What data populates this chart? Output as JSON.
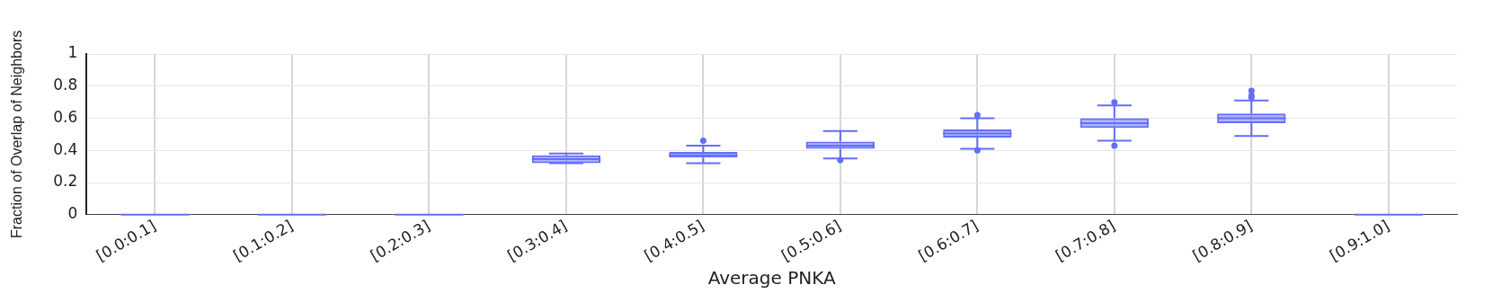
{
  "chart_data": {
    "type": "box",
    "xlabel": "Average PNKA",
    "ylabel": "Fraction of Overlap of Neighbors",
    "categories": [
      "[0.0:0.1]",
      "[0.1:0.2]",
      "[0.2:0.3]",
      "[0.3:0.4]",
      "[0.4:0.5]",
      "[0.5:0.6]",
      "[0.6:0.7]",
      "[0.7:0.8]",
      "[0.8:0.9]",
      "[0.9:1.0]"
    ],
    "boxes": [
      {
        "low": 0,
        "q1": 0,
        "median": 0,
        "q3": 0,
        "high": 0
      },
      {
        "low": 0,
        "q1": 0,
        "median": 0,
        "q3": 0,
        "high": 0
      },
      {
        "low": 0,
        "q1": 0,
        "median": 0,
        "q3": 0,
        "high": 0
      },
      {
        "low": 0.32,
        "q1": 0.32,
        "median": 0.345,
        "q3": 0.37,
        "high": 0.38
      },
      {
        "low": 0.32,
        "q1": 0.355,
        "median": 0.37,
        "q3": 0.39,
        "high": 0.43,
        "outliers": [
          0.46
        ]
      },
      {
        "low": 0.35,
        "q1": 0.41,
        "median": 0.43,
        "q3": 0.455,
        "high": 0.52,
        "outliers": [
          0.34
        ]
      },
      {
        "low": 0.41,
        "q1": 0.48,
        "median": 0.505,
        "q3": 0.53,
        "high": 0.6,
        "outliers": [
          0.62,
          0.4
        ]
      },
      {
        "low": 0.46,
        "q1": 0.54,
        "median": 0.57,
        "q3": 0.6,
        "high": 0.68,
        "outliers": [
          0.7,
          0.43
        ]
      },
      {
        "low": 0.49,
        "q1": 0.57,
        "median": 0.6,
        "q3": 0.63,
        "high": 0.71,
        "outliers": [
          0.77,
          0.74,
          0.73
        ]
      },
      {
        "low": 0,
        "q1": 0,
        "median": 0,
        "q3": 0,
        "high": 0
      }
    ],
    "color": "#636efa",
    "ylim": [
      0,
      1
    ],
    "yticks": [
      0,
      0.2,
      0.4,
      0.6,
      0.8,
      1
    ],
    "grid": true
  }
}
